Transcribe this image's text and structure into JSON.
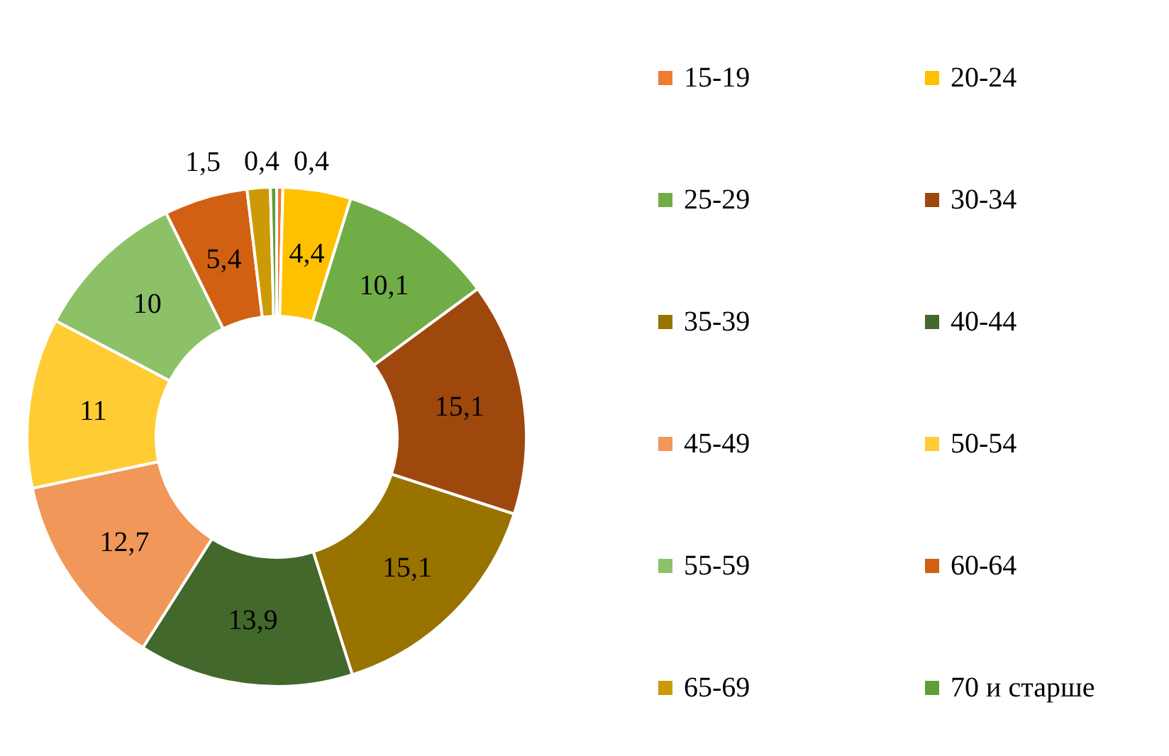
{
  "chart_data": {
    "type": "donut",
    "categories": [
      "15-19",
      "20-24",
      "25-29",
      "30-34",
      "35-39",
      "40-44",
      "45-49",
      "50-54",
      "55-59",
      "60-64",
      "65-69",
      "70 и старше"
    ],
    "values": [
      0.4,
      4.4,
      10.1,
      15.1,
      15.1,
      13.9,
      12.7,
      11,
      10,
      5.4,
      1.5,
      0.4
    ],
    "colors": [
      "#ed7d31",
      "#ffc000",
      "#70ad47",
      "#9e480e",
      "#997300",
      "#43682b",
      "#f1975a",
      "#ffcd33",
      "#8cc168",
      "#d26012",
      "#cc9a06",
      "#5e9e37"
    ],
    "value_labels": [
      "0,4",
      "4,4",
      "10,1",
      "15,1",
      "15,1",
      "13,9",
      "12,7",
      "11",
      "10",
      "5,4",
      "1,5",
      "0,4"
    ],
    "legend": "right"
  }
}
